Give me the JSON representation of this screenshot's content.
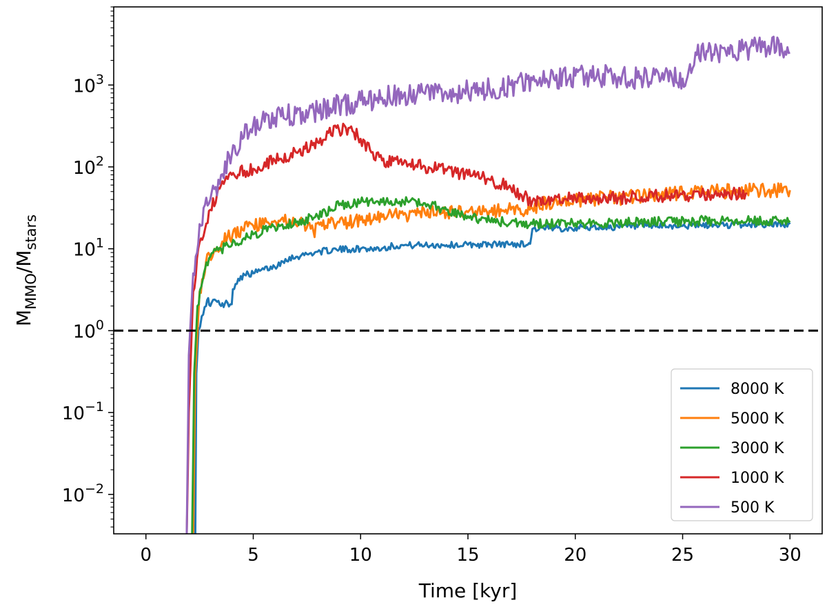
{
  "chart_data": {
    "type": "line",
    "title": "",
    "xlabel": "Time [kyr]",
    "ylabel": {
      "main": "M",
      "sub1": "MMO",
      "sep": "/M",
      "sub2": "stars"
    },
    "y_scale": "log",
    "xlim": [
      -1.5,
      31.5
    ],
    "ylim": [
      0.0033,
      9000
    ],
    "x_ticks": [
      0,
      5,
      10,
      15,
      20,
      25,
      30
    ],
    "x_tick_labels": [
      "0",
      "5",
      "10",
      "15",
      "20",
      "25",
      "30"
    ],
    "y_ticks": [
      {
        "value": 0.01,
        "base": "10",
        "exp": "−2"
      },
      {
        "value": 0.1,
        "base": "10",
        "exp": "−1"
      },
      {
        "value": 1,
        "base": "10",
        "exp": "0"
      },
      {
        "value": 10,
        "base": "10",
        "exp": "1"
      },
      {
        "value": 100,
        "base": "10",
        "exp": "2"
      },
      {
        "value": 1000,
        "base": "10",
        "exp": "3"
      }
    ],
    "reference_line": {
      "y": 1,
      "style": "dashed",
      "color": "#000000"
    },
    "legend_position": "lower-right",
    "series": [
      {
        "name": "8000 K",
        "color": "#1f77b4",
        "noise": 0.04,
        "x": [
          2.3,
          2.35,
          2.45,
          2.6,
          2.8,
          2.9,
          3.0,
          3.2,
          3.5,
          3.8,
          4.0,
          4.05,
          4.3,
          4.6,
          5.0,
          5.5,
          6.0,
          6.5,
          7.0,
          7.5,
          8.0,
          9.0,
          10.0,
          11.0,
          11.5,
          12.0,
          13.0,
          14.0,
          15.0,
          16.0,
          17.0,
          17.9,
          18.0,
          19.0,
          20.0,
          22.0,
          25.0,
          27.0,
          30.0
        ],
        "y": [
          0.003,
          0.3,
          1.0,
          1.5,
          2.0,
          2.5,
          2.0,
          2.4,
          2.0,
          2.2,
          2.1,
          3.2,
          4.3,
          4.8,
          5.0,
          5.6,
          6.0,
          7.5,
          8.0,
          8.6,
          9.2,
          9.8,
          10.0,
          10.1,
          10.9,
          11.0,
          11.1,
          11.1,
          11.2,
          11.3,
          11.4,
          11.5,
          17.5,
          17.7,
          18.0,
          18.5,
          19.0,
          19.5,
          20.0
        ]
      },
      {
        "name": "5000 K",
        "color": "#ff7f0e",
        "noise": 0.09,
        "x": [
          2.2,
          2.3,
          2.5,
          2.8,
          3.2,
          3.8,
          4.5,
          5.0,
          5.5,
          6.0,
          6.3,
          6.8,
          7.3,
          7.8,
          8.2,
          9.0,
          10.0,
          11.0,
          12.0,
          13.0,
          14.0,
          15.0,
          16.0,
          17.0,
          18.0,
          18.3,
          19.0,
          20.0,
          22.0,
          24.0,
          25.0,
          26.0,
          28.0,
          30.0
        ],
        "y": [
          0.003,
          0.3,
          3.0,
          7.0,
          10.0,
          14.0,
          17.0,
          19.0,
          20.0,
          22.0,
          23.0,
          20.0,
          21.0,
          16.5,
          19.0,
          21.0,
          22.5,
          24.5,
          26.0,
          27.0,
          27.5,
          28.0,
          29.0,
          30.0,
          31.0,
          35.0,
          37.0,
          40.0,
          42.0,
          45.0,
          48.0,
          50.0,
          51.0,
          52.0
        ]
      },
      {
        "name": "3000 K",
        "color": "#2ca02c",
        "noise": 0.06,
        "x": [
          2.15,
          2.25,
          2.4,
          2.7,
          3.0,
          3.5,
          4.0,
          4.5,
          5.0,
          6.0,
          7.0,
          8.0,
          9.0,
          10.0,
          11.0,
          12.0,
          13.0,
          14.0,
          15.0,
          16.0,
          17.0,
          18.0,
          20.0,
          22.0,
          24.0,
          26.0,
          28.0,
          30.0
        ],
        "y": [
          0.003,
          0.3,
          2.0,
          5.0,
          8.0,
          10.0,
          11.0,
          13.0,
          15.0,
          18.5,
          21.0,
          25.0,
          34.0,
          37.0,
          37.0,
          37.5,
          36.0,
          30.0,
          25.0,
          22.0,
          21.0,
          20.0,
          20.5,
          21.0,
          21.5,
          22.0,
          22.0,
          22.0
        ]
      },
      {
        "name": "1000 K",
        "color": "#d62728",
        "noise": 0.08,
        "x": [
          1.9,
          2.0,
          2.2,
          2.5,
          3.0,
          3.5,
          4.0,
          5.0,
          6.0,
          7.0,
          8.0,
          8.5,
          9.0,
          9.5,
          10.0,
          10.5,
          11.0,
          12.0,
          13.0,
          14.0,
          15.0,
          16.0,
          17.0,
          17.5,
          18.0,
          19.0,
          20.0,
          22.0,
          24.0,
          26.0,
          28.0
        ],
        "y": [
          0.003,
          0.1,
          3.0,
          12.0,
          30.0,
          60.0,
          80.0,
          95.0,
          120.0,
          150.0,
          200.0,
          260.0,
          280.0,
          300.0,
          220.0,
          150.0,
          120.0,
          110.0,
          100.0,
          90.0,
          80.0,
          70.0,
          55.0,
          45.0,
          38.0,
          40.0,
          42.0,
          42.0,
          44.0,
          46.0,
          48.0
        ]
      },
      {
        "name": "500 K",
        "color": "#9467bd",
        "noise": 0.14,
        "x": [
          1.9,
          2.0,
          2.2,
          2.5,
          3.0,
          3.5,
          4.0,
          4.5,
          5.0,
          6.0,
          7.0,
          8.0,
          9.0,
          10.0,
          11.0,
          12.0,
          13.0,
          14.0,
          15.0,
          16.0,
          17.0,
          18.0,
          19.0,
          20.0,
          21.0,
          22.0,
          23.0,
          24.0,
          25.0,
          25.4,
          25.6,
          26.0,
          27.0,
          28.0,
          29.0,
          30.0
        ],
        "y": [
          0.003,
          0.5,
          5.0,
          20.0,
          40.0,
          80.0,
          140.0,
          220.0,
          330.0,
          400.0,
          450.0,
          480.0,
          560.0,
          650.0,
          700.0,
          750.0,
          780.0,
          800.0,
          850.0,
          900.0,
          1000.0,
          1150.0,
          1200.0,
          1300.0,
          1300.0,
          1250.0,
          1200.0,
          1200.0,
          1200.0,
          1400.0,
          2500.0,
          2300.0,
          2600.0,
          2800.0,
          3000.0,
          2500.0
        ]
      }
    ]
  }
}
